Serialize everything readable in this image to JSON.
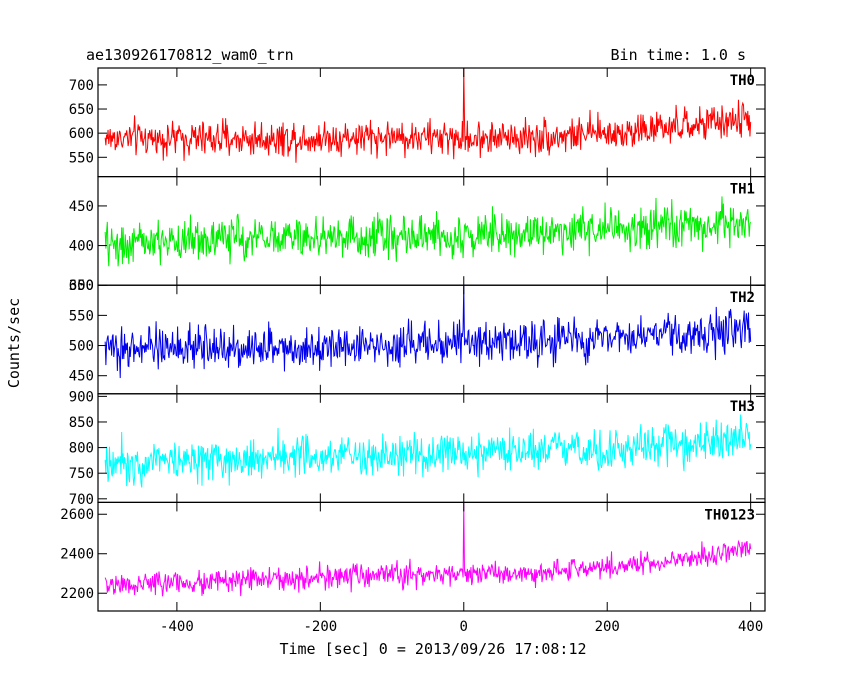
{
  "header": {
    "left_title": "ae130926170812_wam0_trn",
    "right_title": "Bin time: 1.0 s"
  },
  "axes": {
    "xlabel": "Time [sec] 0 = 2013/09/26 17:08:12",
    "ylabel": "Counts/sec"
  },
  "chart_data": {
    "type": "line",
    "title": "ae130926170812_wam0_trn",
    "subtitle": "Bin time: 1.0 s",
    "xlabel": "Time [sec] 0 = 2013/09/26 17:08:12",
    "ylabel": "Counts/sec",
    "xlim": [
      -510,
      420
    ],
    "x_range": [
      -500,
      400
    ],
    "x_ticks": [
      -400,
      -200,
      0,
      200,
      400
    ],
    "bin_seconds": 1.0,
    "grid": false,
    "series": [
      {
        "name": "TH0",
        "color": "#ff0000",
        "ylim": [
          510,
          735
        ],
        "y_ticks": [
          550,
          600,
          650,
          700
        ],
        "y_tick_labels": [
          "550",
          "600",
          "650",
          "700"
        ],
        "trend": [
          [
            -500,
            590
          ],
          [
            -300,
            588
          ],
          [
            -100,
            592
          ],
          [
            0,
            590
          ],
          [
            100,
            592
          ],
          [
            200,
            600
          ],
          [
            300,
            612
          ],
          [
            400,
            630
          ]
        ],
        "scatter_sd": 26,
        "spike": {
          "x": 0,
          "y": 735
        }
      },
      {
        "name": "TH1",
        "color": "#00ee00",
        "ylim": [
          350,
          487
        ],
        "y_ticks": [
          350,
          400,
          450
        ],
        "y_tick_labels": [
          "350",
          "400",
          "450"
        ],
        "trend": [
          [
            -500,
            401
          ],
          [
            -300,
            410
          ],
          [
            -100,
            412
          ],
          [
            0,
            413
          ],
          [
            100,
            418
          ],
          [
            200,
            420
          ],
          [
            300,
            424
          ],
          [
            400,
            428
          ]
        ],
        "scatter_sd": 19
      },
      {
        "name": "TH2",
        "color": "#0000ee",
        "ylim": [
          420,
          600
        ],
        "y_ticks": [
          450,
          500,
          550,
          600
        ],
        "y_tick_labels": [
          "450",
          "500",
          "550",
          "600"
        ],
        "trend": [
          [
            -500,
            495
          ],
          [
            -300,
            497
          ],
          [
            -100,
            502
          ],
          [
            0,
            505
          ],
          [
            100,
            508
          ],
          [
            200,
            513
          ],
          [
            300,
            518
          ],
          [
            400,
            525
          ]
        ],
        "scatter_sd": 24,
        "spike": {
          "x": 0,
          "y": 600
        }
      },
      {
        "name": "TH3",
        "color": "#00ffff",
        "ylim": [
          693,
          905
        ],
        "y_ticks": [
          700,
          750,
          800,
          850,
          900
        ],
        "y_tick_labels": [
          "700",
          "750",
          "800",
          "850",
          "900"
        ],
        "trend": [
          [
            -500,
            773
          ],
          [
            -300,
            780
          ],
          [
            -100,
            784
          ],
          [
            0,
            785
          ],
          [
            100,
            790
          ],
          [
            200,
            797
          ],
          [
            300,
            806
          ],
          [
            400,
            820
          ]
        ],
        "scatter_sd": 29
      },
      {
        "name": "TH0123",
        "color": "#ff00ff",
        "ylim": [
          2110,
          2660
        ],
        "y_ticks": [
          2200,
          2400,
          2600
        ],
        "y_tick_labels": [
          "2200",
          "2400",
          "2600"
        ],
        "trend": [
          [
            -500,
            2240
          ],
          [
            -300,
            2265
          ],
          [
            -100,
            2290
          ],
          [
            0,
            2295
          ],
          [
            100,
            2310
          ],
          [
            200,
            2330
          ],
          [
            300,
            2365
          ],
          [
            400,
            2430
          ]
        ],
        "scatter_sd": 42,
        "spike": {
          "x": 0,
          "y": 2660
        }
      }
    ]
  }
}
